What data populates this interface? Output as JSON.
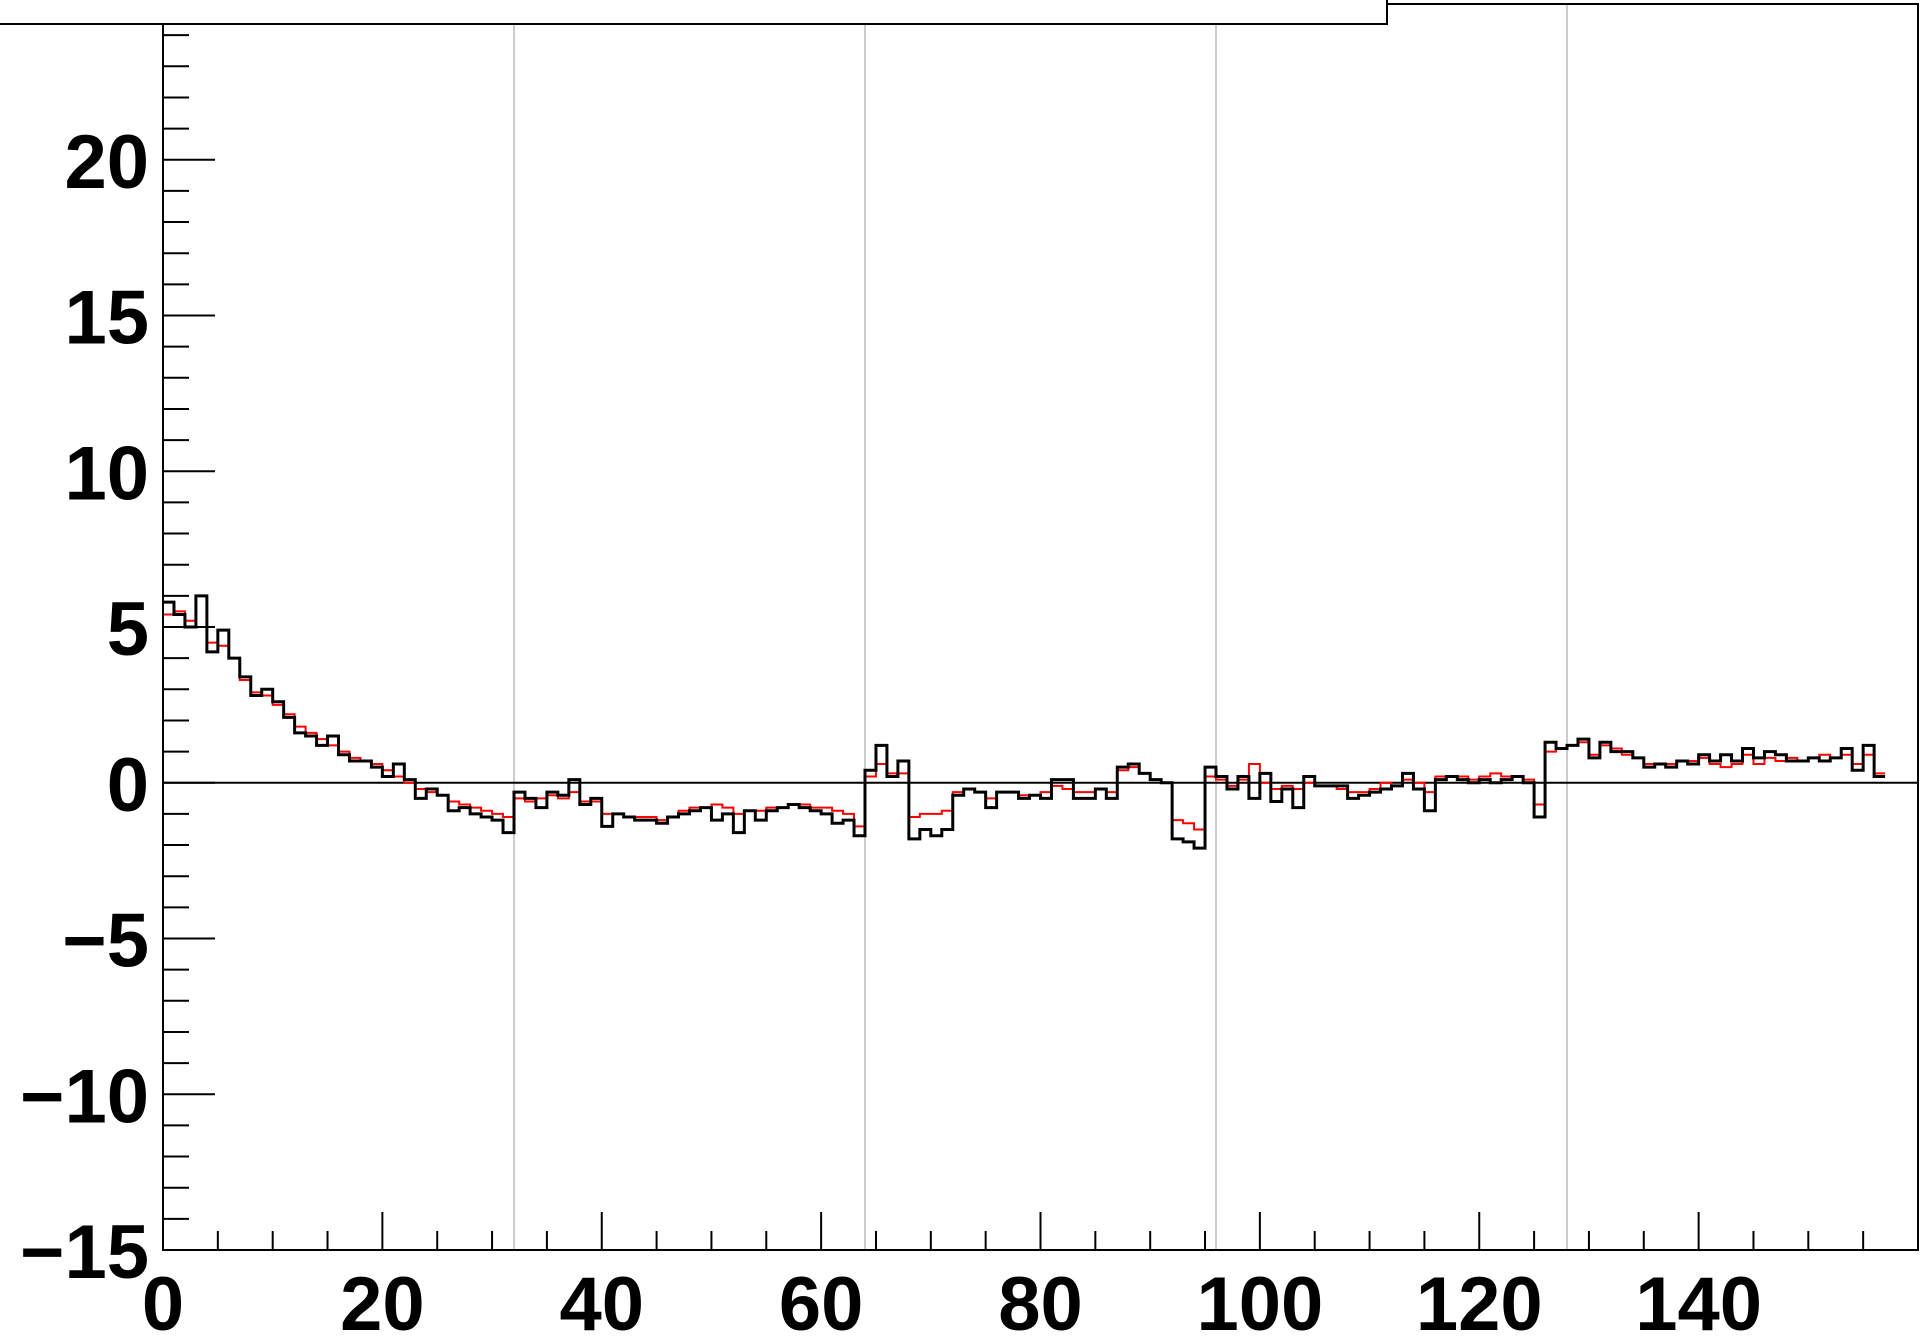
{
  "chart_data": {
    "type": "histogram-step",
    "title": "",
    "xlabel": "",
    "ylabel": "",
    "xlim": [
      0,
      160
    ],
    "ylim": [
      -15,
      25
    ],
    "x_ticks": [
      0,
      20,
      40,
      60,
      80,
      100,
      120,
      140
    ],
    "x_tick_labels": [
      "0",
      "20",
      "40",
      "60",
      "80",
      "100",
      "120",
      "140"
    ],
    "y_ticks": [
      -15,
      -10,
      -5,
      0,
      5,
      10,
      15,
      20
    ],
    "y_tick_labels": [
      "−15",
      "−10",
      "−5",
      "0",
      "5",
      "10",
      "15",
      "20"
    ],
    "vertical_gridlines_x": [
      32,
      64,
      96,
      128
    ],
    "zero_line": true,
    "legend": {
      "present": true,
      "placement": "top-left",
      "visible_text": ""
    },
    "series": [
      {
        "color": "#000000",
        "bin_edges_start": 0,
        "bin_width": 1,
        "values": [
          5.8,
          5.4,
          5.0,
          6.0,
          4.2,
          4.9,
          4.0,
          3.4,
          2.8,
          3.0,
          2.6,
          2.1,
          1.6,
          1.5,
          1.2,
          1.5,
          0.9,
          0.7,
          0.7,
          0.5,
          0.2,
          0.6,
          0.1,
          -0.5,
          -0.2,
          -0.4,
          -0.9,
          -0.8,
          -1.0,
          -1.1,
          -1.2,
          -1.6,
          -0.3,
          -0.5,
          -0.8,
          -0.3,
          -0.4,
          0.1,
          -0.7,
          -0.5,
          -1.4,
          -1.0,
          -1.1,
          -1.2,
          -1.2,
          -1.3,
          -1.1,
          -1.0,
          -0.9,
          -0.8,
          -1.2,
          -1.0,
          -1.6,
          -0.9,
          -1.2,
          -0.9,
          -0.8,
          -0.7,
          -0.8,
          -0.9,
          -1.0,
          -1.3,
          -1.2,
          -1.7,
          0.4,
          1.2,
          0.2,
          0.7,
          -1.8,
          -1.5,
          -1.7,
          -1.5,
          -0.4,
          -0.2,
          -0.3,
          -0.8,
          -0.3,
          -0.3,
          -0.5,
          -0.4,
          -0.5,
          0.1,
          0.1,
          -0.5,
          -0.5,
          -0.2,
          -0.5,
          0.5,
          0.6,
          0.3,
          0.1,
          0.0,
          -1.8,
          -1.9,
          -2.1,
          0.5,
          0.2,
          -0.2,
          0.2,
          -0.5,
          0.3,
          -0.6,
          -0.2,
          -0.8,
          0.2,
          -0.1,
          -0.1,
          -0.1,
          -0.5,
          -0.4,
          -0.3,
          -0.2,
          -0.1,
          0.3,
          -0.2,
          -0.9,
          0.1,
          0.2,
          0.1,
          0.0,
          0.1,
          0.0,
          0.1,
          0.2,
          0.0,
          -1.1,
          1.3,
          1.1,
          1.2,
          1.4,
          0.8,
          1.3,
          1.0,
          1.0,
          0.8,
          0.5,
          0.6,
          0.5,
          0.7,
          0.6,
          0.9,
          0.7,
          0.9,
          0.7,
          1.1,
          0.8,
          1.0,
          0.9,
          0.7,
          0.7,
          0.8,
          0.7,
          0.8,
          1.1,
          0.4,
          1.2,
          0.2
        ]
      },
      {
        "color": "#ff0000",
        "bin_edges_start": 0,
        "bin_width": 1,
        "values": [
          5.4,
          5.5,
          5.2,
          5.0,
          4.5,
          4.4,
          4.0,
          3.3,
          2.9,
          2.8,
          2.5,
          2.2,
          1.8,
          1.6,
          1.4,
          1.2,
          1.0,
          0.8,
          0.7,
          0.6,
          0.4,
          0.2,
          0.0,
          -0.2,
          -0.3,
          -0.4,
          -0.6,
          -0.7,
          -0.8,
          -0.9,
          -1.0,
          -1.1,
          -0.5,
          -0.6,
          -0.5,
          -0.4,
          -0.5,
          -0.3,
          -0.6,
          -0.6,
          -1.0,
          -1.0,
          -1.1,
          -1.1,
          -1.1,
          -1.2,
          -1.1,
          -0.9,
          -0.8,
          -0.8,
          -0.7,
          -0.8,
          -1.0,
          -0.9,
          -0.9,
          -0.8,
          -0.8,
          -0.7,
          -0.7,
          -0.8,
          -0.8,
          -0.9,
          -1.0,
          -1.4,
          0.2,
          0.6,
          0.3,
          0.3,
          -1.1,
          -1.0,
          -1.0,
          -0.9,
          -0.3,
          -0.2,
          -0.3,
          -0.5,
          -0.3,
          -0.3,
          -0.4,
          -0.4,
          -0.3,
          -0.1,
          -0.2,
          -0.3,
          -0.3,
          -0.2,
          -0.3,
          0.4,
          0.5,
          0.3,
          0.1,
          0.0,
          -1.2,
          -1.3,
          -1.5,
          0.2,
          0.1,
          -0.1,
          0.1,
          0.6,
          0.0,
          -0.2,
          -0.1,
          -0.2,
          0.0,
          -0.1,
          -0.1,
          -0.2,
          -0.3,
          -0.3,
          -0.2,
          0.0,
          -0.1,
          0.1,
          0.0,
          -0.3,
          0.2,
          0.2,
          0.2,
          0.1,
          0.2,
          0.3,
          0.2,
          0.2,
          0.1,
          -0.7,
          1.0,
          1.1,
          1.2,
          1.3,
          0.9,
          1.2,
          1.1,
          0.9,
          0.8,
          0.6,
          0.6,
          0.6,
          0.7,
          0.7,
          0.8,
          0.6,
          0.5,
          0.6,
          0.9,
          0.6,
          0.8,
          0.7,
          0.8,
          0.7,
          0.8,
          0.9,
          0.8,
          0.9,
          0.6,
          0.9,
          0.3
        ]
      }
    ]
  }
}
